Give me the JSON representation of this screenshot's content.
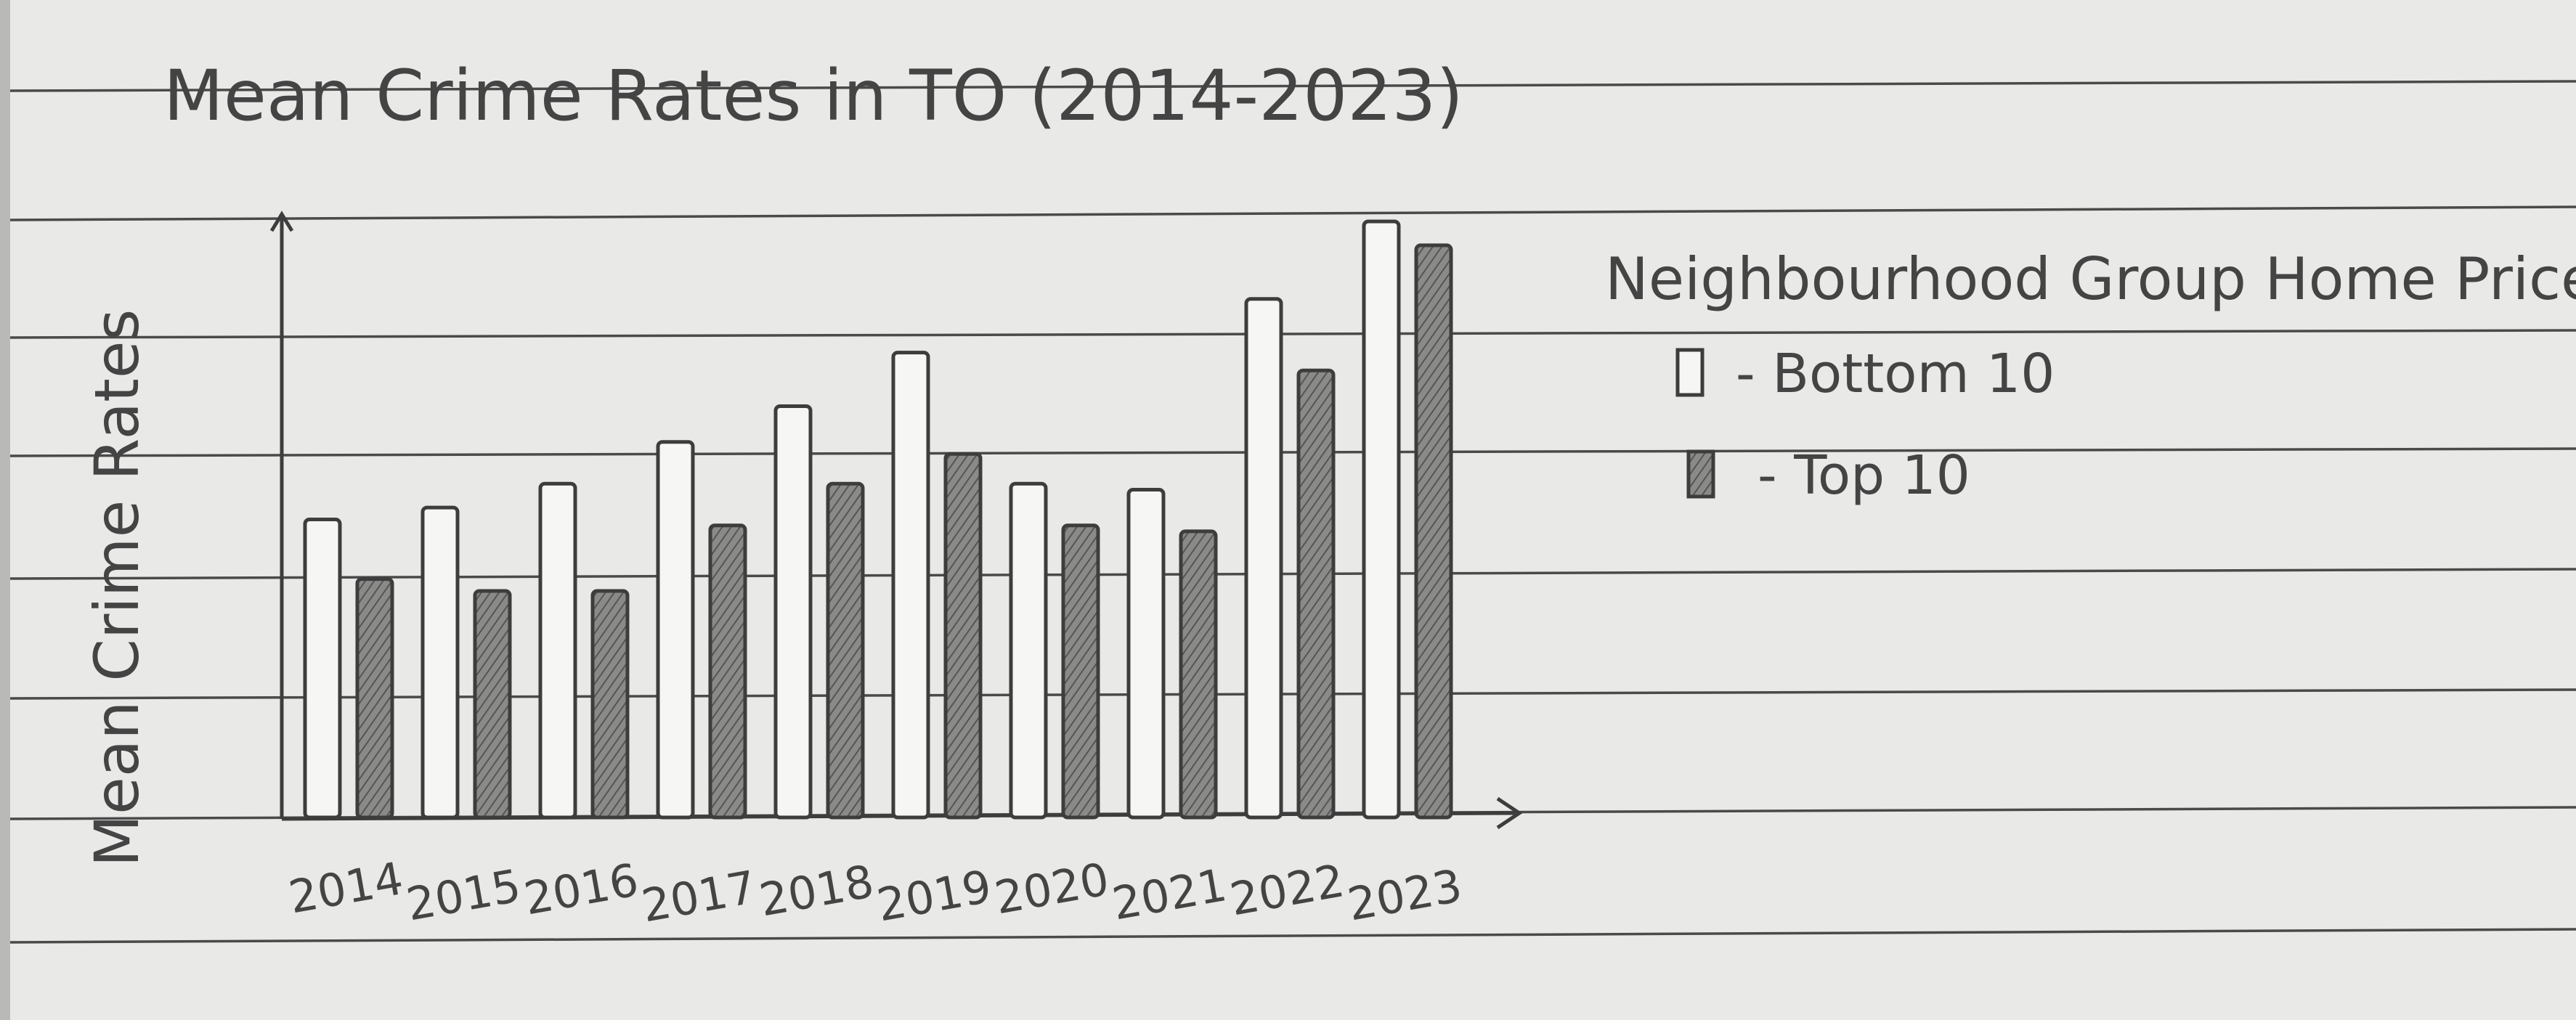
{
  "chart_data": {
    "type": "bar",
    "title": "Mean Crime Rates in TO (2014-2023)",
    "xlabel": "",
    "ylabel": "Mean Crime Rates",
    "categories": [
      "2014",
      "2015",
      "2016",
      "2017",
      "2018",
      "2019",
      "2020",
      "2021",
      "2022",
      "2023"
    ],
    "series": [
      {
        "name": "Bottom 10",
        "values": [
          50,
          52,
          56,
          63,
          69,
          78,
          56,
          55,
          87,
          100
        ]
      },
      {
        "name": "Top 10",
        "values": [
          40,
          38,
          38,
          49,
          56,
          61,
          49,
          48,
          75,
          96
        ]
      }
    ],
    "ylim": [
      0,
      100
    ],
    "legend": {
      "title": "Neighbourhood Group Home Price",
      "position": "right",
      "entries": [
        "- Bottom 10",
        "- Top 10"
      ]
    },
    "grid": false,
    "colors": {
      "bottom_10": "#f6f6f4",
      "top_10": "#7d7d7b",
      "pencil": "#3d3d3d",
      "paper": "#e9e9e7",
      "ruled_line": "#4a4a4a"
    }
  }
}
